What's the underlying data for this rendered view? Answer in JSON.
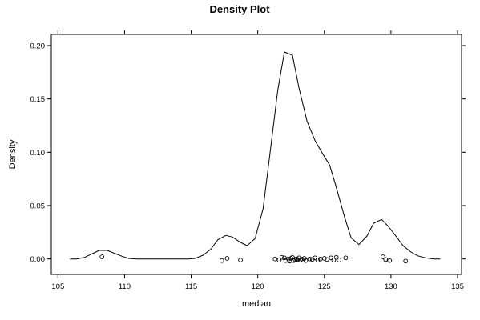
{
  "chart_data": {
    "type": "line",
    "title": "Density Plot",
    "xlabel": "median",
    "ylabel": "Density",
    "xlim": [
      104.5,
      135.3
    ],
    "ylim": [
      -0.0145,
      0.2105
    ],
    "x_ticks": [
      105,
      110,
      115,
      120,
      125,
      130,
      135
    ],
    "x_tick_labels": [
      "105",
      "110",
      "115",
      "120",
      "125",
      "130",
      "135"
    ],
    "y_ticks": [
      0.0,
      0.05,
      0.1,
      0.15,
      0.2
    ],
    "y_tick_labels": [
      "0.00",
      "0.05",
      "0.10",
      "0.15",
      "0.20"
    ],
    "grid": false,
    "series": [
      {
        "style": "line",
        "x": [
          105.9,
          106.4,
          107.0,
          107.5,
          108.1,
          108.7,
          109.2,
          109.8,
          110.3,
          110.9,
          111.4,
          112.0,
          112.6,
          113.1,
          113.7,
          114.2,
          114.8,
          115.3,
          115.9,
          116.5,
          117.0,
          117.6,
          118.1,
          118.7,
          119.2,
          119.8,
          120.4,
          120.9,
          121.5,
          122.0,
          122.6,
          123.1,
          123.7,
          124.3,
          124.8,
          125.4,
          125.9,
          126.5,
          127.0,
          127.6,
          128.2,
          128.7,
          129.3,
          129.8,
          130.4,
          130.9,
          131.5,
          132.0,
          132.6,
          133.2,
          133.7
        ],
        "y": [
          0.0,
          0.0,
          0.0015,
          0.0045,
          0.008,
          0.008,
          0.0055,
          0.0025,
          0.0005,
          0.0,
          0.0,
          0.0,
          0.0,
          0.0,
          0.0,
          0.0,
          0.0,
          0.0005,
          0.0035,
          0.0095,
          0.018,
          0.022,
          0.0205,
          0.0155,
          0.0125,
          0.019,
          0.047,
          0.097,
          0.158,
          0.194,
          0.191,
          0.16,
          0.129,
          0.111,
          0.1,
          0.088,
          0.067,
          0.04,
          0.02,
          0.0135,
          0.0215,
          0.0335,
          0.037,
          0.0305,
          0.021,
          0.0125,
          0.0065,
          0.003,
          0.001,
          0.0,
          0.0
        ]
      },
      {
        "style": "points",
        "x": [
          108.3,
          117.3,
          117.7,
          118.7,
          121.3,
          121.6,
          121.8,
          122.0,
          122.1,
          122.3,
          122.4,
          122.5,
          122.6,
          122.7,
          122.8,
          122.9,
          123.0,
          123.1,
          123.2,
          123.3,
          123.5,
          123.6,
          123.9,
          124.1,
          124.3,
          124.5,
          124.7,
          125.0,
          125.2,
          125.5,
          125.7,
          125.9,
          126.1,
          126.6,
          129.4,
          129.6,
          129.9,
          131.1
        ],
        "y": [
          0.002,
          -0.0015,
          0.0005,
          -0.001,
          0.0,
          -0.001,
          0.0015,
          0.001,
          -0.0015,
          0.0,
          -0.002,
          0.0005,
          0.0015,
          -0.0015,
          -0.0005,
          0.0,
          -0.0005,
          0.001,
          -0.001,
          0.0,
          0.0005,
          -0.0015,
          0.0,
          -0.0005,
          0.001,
          -0.001,
          0.0,
          0.0005,
          -0.0005,
          0.001,
          -0.001,
          0.0015,
          -0.001,
          0.001,
          0.002,
          -0.0005,
          -0.0015,
          -0.002
        ]
      }
    ]
  }
}
